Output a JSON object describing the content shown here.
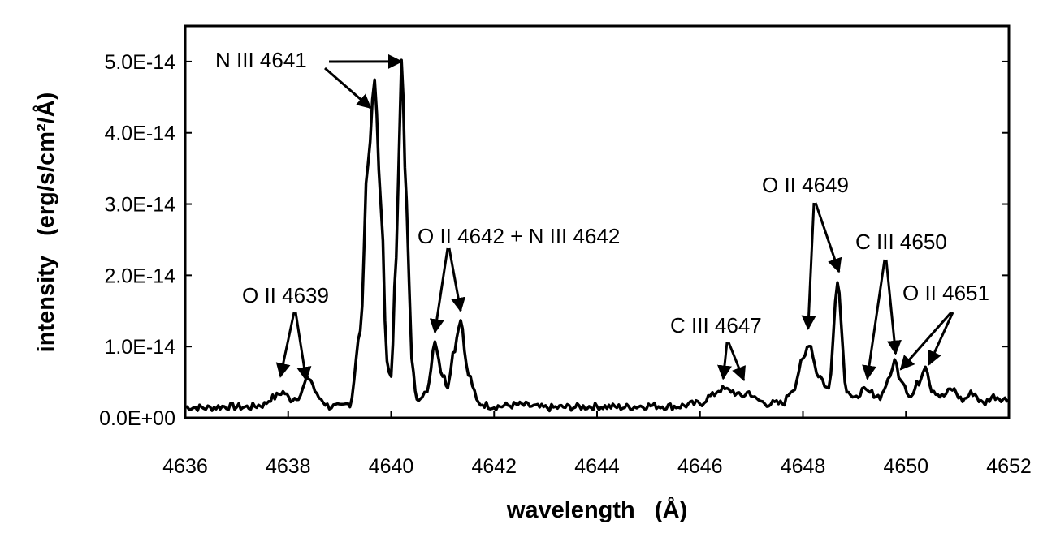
{
  "chart_data": {
    "type": "line",
    "title": "",
    "xlabel": "wavelength   (Å)",
    "ylabel": "intensity   (erg/s/cm²/Å)",
    "xlim": [
      4636,
      4652
    ],
    "ylim": [
      0,
      5.5e-14
    ],
    "x_ticks": [
      4636,
      4638,
      4640,
      4642,
      4644,
      4646,
      4648,
      4650,
      4652
    ],
    "x_tick_labels": [
      "4636",
      "4638",
      "4640",
      "4642",
      "4644",
      "4646",
      "4648",
      "4650",
      "4652"
    ],
    "y_ticks": [
      0,
      1e-14,
      2e-14,
      3e-14,
      4e-14,
      5e-14
    ],
    "y_tick_labels": [
      "0.0E+00",
      "1.0E-14",
      "2.0E-14",
      "3.0E-14",
      "4.0E-14",
      "5.0E-14"
    ],
    "grid": false,
    "legend": "none",
    "line_color": "#000000",
    "series": [
      {
        "x": [
          4636.0,
          4636.4,
          4636.8,
          4637.2,
          4637.5,
          4637.7,
          4637.9,
          4638.05,
          4638.2,
          4638.4,
          4638.6,
          4638.8,
          4639.0,
          4639.2,
          4639.4,
          4639.55,
          4639.68,
          4639.8,
          4639.92,
          4640.0,
          4640.1,
          4640.2,
          4640.3,
          4640.4,
          4640.5,
          4640.6,
          4640.7,
          4640.85,
          4641.0,
          4641.1,
          4641.2,
          4641.35,
          4641.5,
          4641.7,
          4642.0,
          4642.5,
          4643.0,
          4643.5,
          4644.0,
          4644.5,
          4645.0,
          4645.5,
          4646.0,
          4646.2,
          4646.4,
          4646.6,
          4646.8,
          4646.95,
          4647.1,
          4647.3,
          4647.6,
          4647.8,
          4648.0,
          4648.12,
          4648.3,
          4648.5,
          4648.67,
          4648.85,
          4649.0,
          4649.15,
          4649.3,
          4649.5,
          4649.65,
          4649.78,
          4649.9,
          4650.1,
          4650.25,
          4650.38,
          4650.5,
          4650.7,
          4650.9,
          4651.1,
          4651.3,
          4651.5,
          4651.7,
          4652.0
        ],
        "y": [
          1.5e-15,
          1.4e-15,
          1.6e-15,
          1.5e-15,
          1.8e-15,
          2.8e-15,
          3.6e-15,
          2.6e-15,
          3e-15,
          5.6e-15,
          2.8e-15,
          1.6e-15,
          1.5e-15,
          2e-15,
          1.2e-14,
          3.6e-14,
          4.75e-14,
          3e-14,
          8e-15,
          5.5e-15,
          2.3e-14,
          5e-14,
          3e-14,
          8e-15,
          3e-15,
          2.5e-15,
          4e-15,
          1.07e-14,
          6e-15,
          4.5e-15,
          9e-15,
          1.37e-14,
          6e-15,
          2e-15,
          1.6e-15,
          1.8e-15,
          1.4e-15,
          1.5e-15,
          1.6e-15,
          1.5e-15,
          1.7e-15,
          1.6e-15,
          2e-15,
          3e-15,
          4e-15,
          3.8e-15,
          3e-15,
          3.6e-15,
          2.5e-15,
          2e-15,
          2e-15,
          4e-15,
          8e-15,
          1.05e-14,
          6e-15,
          4e-15,
          1.9e-14,
          4e-15,
          2.5e-15,
          3.8e-15,
          3.5e-15,
          3e-15,
          5e-15,
          8e-15,
          5.5e-15,
          3e-15,
          5e-15,
          7.5e-15,
          4e-15,
          3e-15,
          4e-15,
          2.5e-15,
          3.5e-15,
          2e-15,
          3e-15,
          2.5e-15
        ]
      }
    ],
    "annotations": [
      {
        "text": "N III 4641",
        "targets": [
          [
            4639.6,
            4.35e-14
          ],
          [
            4640.2,
            5e-14
          ]
        ]
      },
      {
        "text": "O II 4639",
        "targets": [
          [
            4637.85,
            5.8e-15
          ],
          [
            4638.35,
            5.3e-15
          ]
        ]
      },
      {
        "text": "O II 4642 + N III 4642",
        "targets": [
          [
            4640.85,
            1.2e-14
          ],
          [
            4641.35,
            1.5e-14
          ]
        ]
      },
      {
        "text": "C III 4647",
        "targets": [
          [
            4646.45,
            5.5e-15
          ],
          [
            4646.85,
            5.3e-15
          ]
        ]
      },
      {
        "text": "O II 4649",
        "targets": [
          [
            4648.1,
            1.25e-14
          ],
          [
            4648.7,
            2.05e-14
          ]
        ]
      },
      {
        "text": "C III 4650",
        "targets": [
          [
            4649.25,
            5.5e-15
          ],
          [
            4649.8,
            9e-15
          ]
        ]
      },
      {
        "text": "O II 4651",
        "targets": [
          [
            4649.9,
            6.8e-15
          ],
          [
            4650.45,
            7.5e-15
          ]
        ]
      }
    ]
  }
}
